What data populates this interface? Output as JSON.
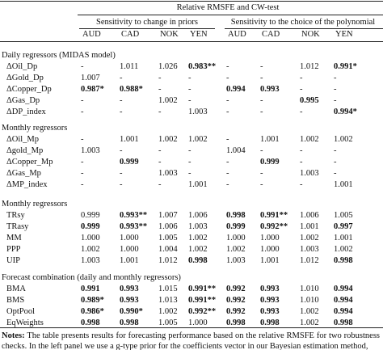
{
  "header": {
    "title": "Relative RMSFE and CW-test",
    "groups": [
      "Sensitivity to change in priors",
      "Sensitivity to the choice of the polynomial"
    ],
    "columns": [
      "AUD",
      "CAD",
      "NOK",
      "YEN",
      "AUD",
      "CAD",
      "NOK",
      "YEN"
    ]
  },
  "sections": [
    {
      "title": "Daily regressors (MIDAS model)",
      "rows": [
        {
          "label": "ΔOil_Dp",
          "cells": [
            "-",
            "1.011",
            "1.026",
            {
              "text": "0.983**",
              "bold": true
            },
            "-",
            "-",
            "1.012",
            {
              "text": "0.991*",
              "bold": true
            }
          ]
        },
        {
          "label": "ΔGold_Dp",
          "cells": [
            "1.007",
            "-",
            "-",
            "-",
            "-",
            "-",
            "-",
            "-"
          ]
        },
        {
          "label": "ΔCopper_Dp",
          "cells": [
            {
              "text": "0.987*",
              "bold": true
            },
            {
              "text": "0.988*",
              "bold": true
            },
            "-",
            "-",
            {
              "text": "0.994",
              "bold": true
            },
            {
              "text": "0.993",
              "bold": true
            },
            "-",
            "-"
          ]
        },
        {
          "label": "ΔGas_Dp",
          "cells": [
            "-",
            "-",
            "1.002",
            "-",
            "-",
            "-",
            {
              "text": "0.995",
              "bold": true
            },
            "-"
          ]
        },
        {
          "label": "ΔDP_index",
          "cells": [
            "-",
            "-",
            "-",
            "1.003",
            "-",
            "-",
            "-",
            {
              "text": "0.994*",
              "bold": true
            }
          ]
        }
      ]
    },
    {
      "title": "Monthly regressors",
      "rows": [
        {
          "label": "ΔOil_Mp",
          "cells": [
            "-",
            "1.001",
            "1.002",
            "1.002",
            "-",
            "1.001",
            "1.002",
            "1.002"
          ]
        },
        {
          "label": "Δgold_Mp",
          "cells": [
            "1.003",
            "-",
            "-",
            "-",
            "1.004",
            "-",
            "-",
            "-"
          ]
        },
        {
          "label": "ΔCopper_Mp",
          "cells": [
            "-",
            {
              "text": "0.999",
              "bold": true
            },
            "-",
            "-",
            "-",
            {
              "text": "0.999",
              "bold": true
            },
            "-",
            "-"
          ]
        },
        {
          "label": "ΔGas_Mp",
          "cells": [
            "-",
            "-",
            "1.003",
            "-",
            "-",
            "-",
            "1.003",
            "-"
          ]
        },
        {
          "label": "ΔMP_index",
          "cells": [
            "-",
            "-",
            "-",
            "1.001",
            "-",
            "-",
            "-",
            "1.001"
          ]
        }
      ]
    },
    {
      "title": "Monthly regressors",
      "rows": [
        {
          "label": "TRsy",
          "cells": [
            "0.999",
            {
              "text": "0.993**",
              "bold": true
            },
            "1.007",
            "1.006",
            {
              "text": "0.998",
              "bold": true
            },
            {
              "text": "0.991**",
              "bold": true
            },
            "1.006",
            "1.005"
          ]
        },
        {
          "label": "TRasy",
          "cells": [
            {
              "text": "0.999",
              "bold": true
            },
            {
              "text": "0.993**",
              "bold": true
            },
            "1.006",
            "1.003",
            {
              "text": "0.999",
              "bold": true
            },
            {
              "text": "0.992**",
              "bold": true
            },
            "1.001",
            {
              "text": "0.997",
              "bold": true
            }
          ]
        },
        {
          "label": "MM",
          "cells": [
            "1.000",
            "1.000",
            "1.005",
            "1.002",
            "1.000",
            "1.000",
            "1.002",
            "1.001"
          ]
        },
        {
          "label": "PPP",
          "cells": [
            "1.002",
            "1.000",
            "1.004",
            "1.002",
            "1.002",
            "1.000",
            "1.003",
            "1.002"
          ]
        },
        {
          "label": "UIP",
          "cells": [
            "1.003",
            "1.001",
            "1.012",
            {
              "text": "0.998",
              "bold": true
            },
            "1.003",
            "1.001",
            "1.012",
            {
              "text": "0.998",
              "bold": true
            }
          ]
        }
      ]
    },
    {
      "title": "Forecast combination (daily and monthly regressors)",
      "rows": [
        {
          "label": "BMA",
          "cells": [
            {
              "text": "0.991",
              "bold": true
            },
            {
              "text": "0.993",
              "bold": true
            },
            "1.015",
            {
              "text": "0.991**",
              "bold": true
            },
            {
              "text": "0.992",
              "bold": true
            },
            {
              "text": "0.993",
              "bold": true
            },
            "1.010",
            {
              "text": "0.994",
              "bold": true
            }
          ]
        },
        {
          "label": "BMS",
          "cells": [
            {
              "text": "0.989*",
              "bold": true
            },
            {
              "text": "0.993",
              "bold": true
            },
            "1.013",
            {
              "text": "0.991**",
              "bold": true
            },
            {
              "text": "0.992",
              "bold": true
            },
            {
              "text": "0.993",
              "bold": true
            },
            "1.010",
            {
              "text": "0.994",
              "bold": true
            }
          ]
        },
        {
          "label": "OptPool",
          "cells": [
            {
              "text": "0.986*",
              "bold": true
            },
            {
              "text": "0.990*",
              "bold": true
            },
            "1.002",
            {
              "text": "0.992**",
              "bold": true
            },
            {
              "text": "0.992",
              "bold": true
            },
            {
              "text": "0.993",
              "bold": true
            },
            "1.002",
            {
              "text": "0.994",
              "bold": true
            }
          ]
        },
        {
          "label": "EqWeights",
          "cells": [
            {
              "text": "0.998",
              "bold": true
            },
            {
              "text": "0.998",
              "bold": true
            },
            "1.005",
            "1.000",
            {
              "text": "0.998",
              "bold": true
            },
            {
              "text": "0.998",
              "bold": true
            },
            "1.002",
            {
              "text": "0.998",
              "bold": true
            }
          ]
        }
      ]
    }
  ],
  "notes": {
    "label": "Notes:",
    "text": "The table presents results for forecasting performance based on the relative RMSFE for two robustness checks. In the left panel we use a g-type prior for the coefficients vector in our Bayesian estimation method,"
  }
}
